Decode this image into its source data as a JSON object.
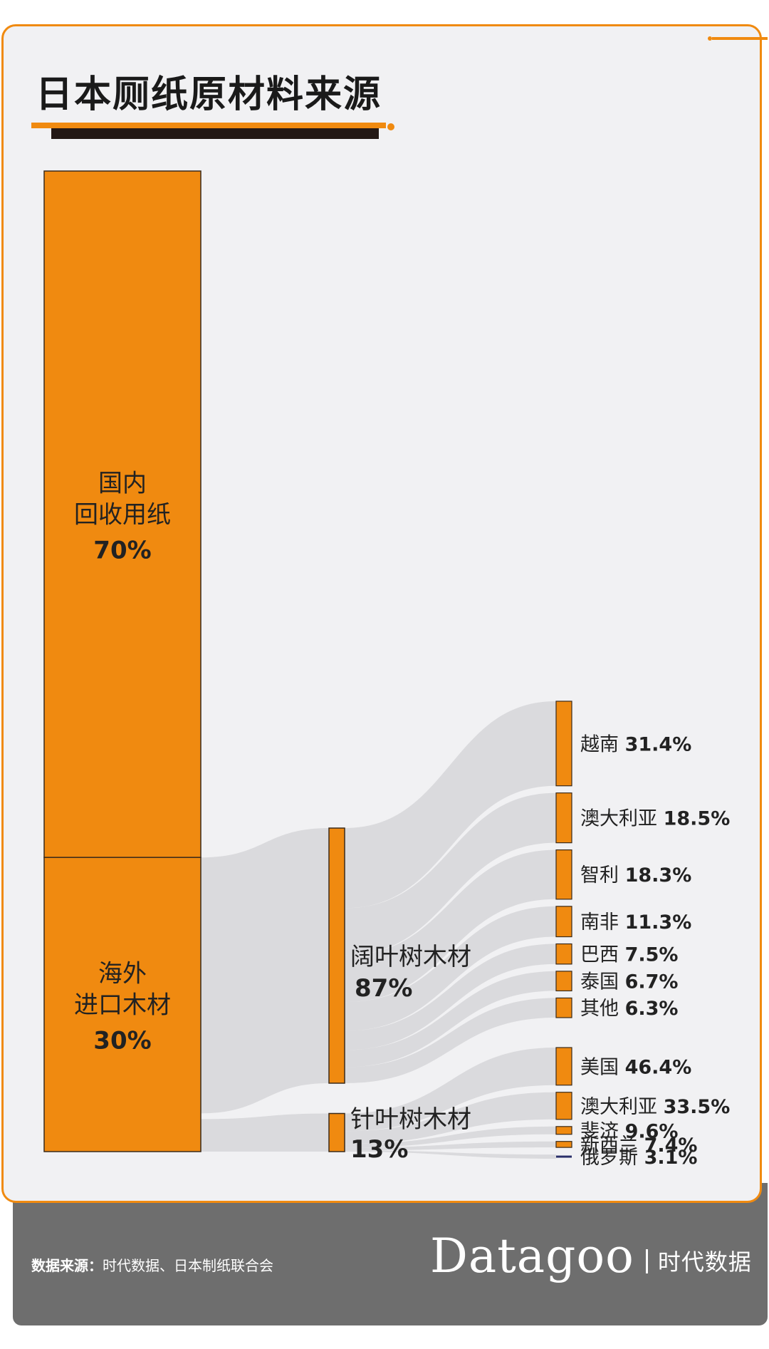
{
  "title": "日本厕纸原材料来源",
  "colors": {
    "accent": "#f08a10",
    "dark_bar": "#231815",
    "background": "#f1f1f3",
    "flow": "#d6d6d8",
    "footer": "#6e6e6e",
    "russia_bar": "#2a2f6a"
  },
  "footer": {
    "source_label": "数据来源：",
    "source_text": "时代数据、日本制纸联合会",
    "brand_logo": "Datagoo",
    "brand_cn": "时代数据"
  },
  "chart_data": {
    "type": "sankey",
    "title": "日本厕纸原材料来源",
    "level1": [
      {
        "line1": "国内",
        "line2": "回收用纸",
        "pct": "70%",
        "value": 70
      },
      {
        "line1": "海外",
        "line2": "进口木材",
        "pct": "30%",
        "value": 30
      }
    ],
    "level2": [
      {
        "name": "阔叶树木材",
        "pct": "87%",
        "value": 87,
        "parent": "海外进口木材"
      },
      {
        "name": "针叶树木材",
        "pct": "13%",
        "value": 13,
        "parent": "海外进口木材"
      }
    ],
    "level3_broadleaf": [
      {
        "name": "越南",
        "pct": "31.4%",
        "value": 31.4
      },
      {
        "name": "澳大利亚",
        "pct": "18.5%",
        "value": 18.5
      },
      {
        "name": "智利",
        "pct": "18.3%",
        "value": 18.3
      },
      {
        "name": "南非",
        "pct": "11.3%",
        "value": 11.3
      },
      {
        "name": "巴西",
        "pct": "7.5%",
        "value": 7.5
      },
      {
        "name": "泰国",
        "pct": "6.7%",
        "value": 6.7
      },
      {
        "name": "其他",
        "pct": "6.3%",
        "value": 6.3
      }
    ],
    "level3_conifer": [
      {
        "name": "美国",
        "pct": "46.4%",
        "value": 46.4
      },
      {
        "name": "澳大利亚",
        "pct": "33.5%",
        "value": 33.5
      },
      {
        "name": "斐济",
        "pct": "9.6%",
        "value": 9.6
      },
      {
        "name": "新西兰",
        "pct": "7.4%",
        "value": 7.4
      },
      {
        "name": "俄罗斯",
        "pct": "3.1%",
        "value": 3.1
      }
    ]
  }
}
